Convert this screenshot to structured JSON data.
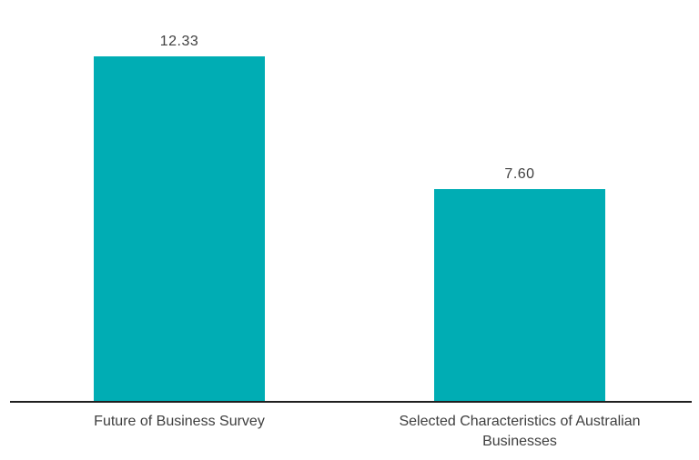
{
  "chart_data": {
    "type": "bar",
    "categories": [
      "Future of Business Survey",
      "Selected Characteristics of Australian Businesses"
    ],
    "values": [
      12.33,
      7.6
    ],
    "value_labels": [
      "12.33",
      "7.60"
    ],
    "title": "",
    "xlabel": "",
    "ylabel": "",
    "ylim": [
      0,
      14.34
    ],
    "grid": false,
    "legend": false,
    "bar_color": "#00ADB4",
    "axis_color": "#1f1f1f",
    "label_color": "#3e3e3e"
  }
}
